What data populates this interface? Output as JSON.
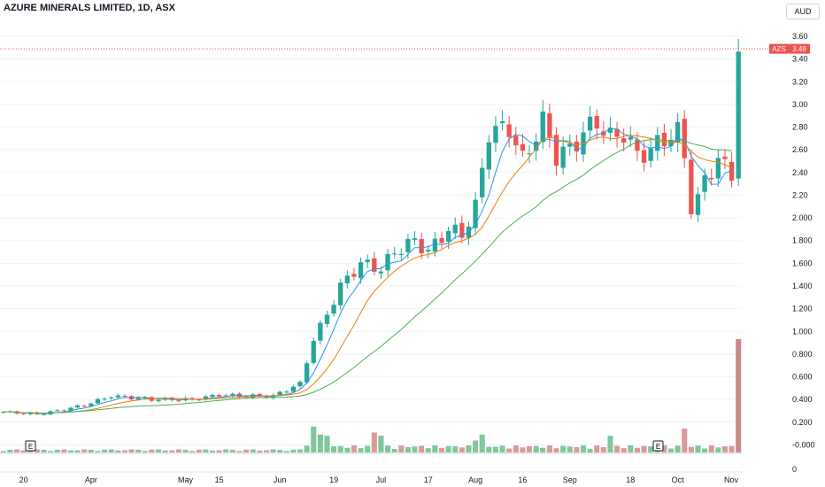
{
  "header": {
    "title": "AZURE MINERALS LIMITED, 1D, ASX"
  },
  "currency_button": {
    "label": "AUD"
  },
  "price_badge": {
    "symbol": "AZS",
    "value": "3.49"
  },
  "lower_pane": {
    "tick_label": "0"
  },
  "earnings_markers": [
    "E",
    "E"
  ],
  "colors": {
    "up": "#26a69a",
    "down": "#ef5350",
    "ma_fast": "#2196f3",
    "ma_mid": "#f57c00",
    "ma_slow": "#4caf50",
    "vol_up": "#80c79c",
    "vol_down": "#d99a9a"
  },
  "chart_data": {
    "type": "candlestick",
    "title": "AZURE MINERALS LIMITED, 1D, ASX",
    "currency": "AUD",
    "last_price": 3.49,
    "y_ticks": [
      "3.60",
      "3.40",
      "3.20",
      "3.00",
      "2.80",
      "2.60",
      "2.40",
      "2.20",
      "2.000",
      "1.800",
      "1.600",
      "1.400",
      "1.200",
      "1.000",
      "0.800",
      "0.600",
      "0.400",
      "0.200",
      "-0.000"
    ],
    "ylim": [
      -0.04,
      3.72
    ],
    "x_labels": [
      "20",
      "Apr",
      "May",
      "15",
      "Jun",
      "19",
      "Jul",
      "17",
      "Aug",
      "16",
      "Sep",
      "18",
      "Oct",
      "Nov"
    ],
    "x_label_bar_index": [
      3,
      13,
      27,
      32,
      41,
      49,
      56,
      63,
      70,
      77,
      84,
      93,
      100,
      110
    ],
    "n_bars": 110,
    "ma_series": [
      "ma_fast",
      "ma_mid",
      "ma_slow"
    ],
    "keypoints": [
      [
        0,
        0.29
      ],
      [
        5,
        0.27
      ],
      [
        8,
        0.3
      ],
      [
        12,
        0.35
      ],
      [
        16,
        0.43
      ],
      [
        22,
        0.4
      ],
      [
        28,
        0.4
      ],
      [
        32,
        0.44
      ],
      [
        36,
        0.43
      ],
      [
        40,
        0.43
      ],
      [
        44,
        0.54
      ],
      [
        46,
        0.93
      ],
      [
        48,
        1.15
      ],
      [
        50,
        1.4
      ],
      [
        53,
        1.6
      ],
      [
        56,
        1.55
      ],
      [
        58,
        1.7
      ],
      [
        61,
        1.8
      ],
      [
        63,
        1.7
      ],
      [
        66,
        1.9
      ],
      [
        68,
        1.85
      ],
      [
        70,
        2.1
      ],
      [
        72,
        2.75
      ],
      [
        75,
        2.8
      ],
      [
        77,
        2.5
      ],
      [
        80,
        2.85
      ],
      [
        82,
        2.55
      ],
      [
        84,
        2.6
      ],
      [
        86,
        2.75
      ],
      [
        88,
        2.85
      ],
      [
        90,
        2.7
      ],
      [
        92,
        2.75
      ],
      [
        94,
        2.55
      ],
      [
        96,
        2.6
      ],
      [
        98,
        2.7
      ],
      [
        100,
        2.75
      ],
      [
        101,
        2.55
      ],
      [
        102,
        2.1
      ],
      [
        103,
        2.15
      ],
      [
        104,
        2.35
      ],
      [
        106,
        2.5
      ],
      [
        107,
        2.45
      ],
      [
        108,
        2.4
      ],
      [
        109,
        3.49
      ]
    ],
    "volume_spikes": [
      [
        46,
        6.5
      ],
      [
        47,
        4.5
      ],
      [
        48,
        4.2
      ],
      [
        55,
        5.0
      ],
      [
        56,
        4.2
      ],
      [
        70,
        3.0
      ],
      [
        71,
        4.5
      ],
      [
        90,
        4.2
      ],
      [
        101,
        6.0
      ],
      [
        109,
        26
      ]
    ]
  }
}
